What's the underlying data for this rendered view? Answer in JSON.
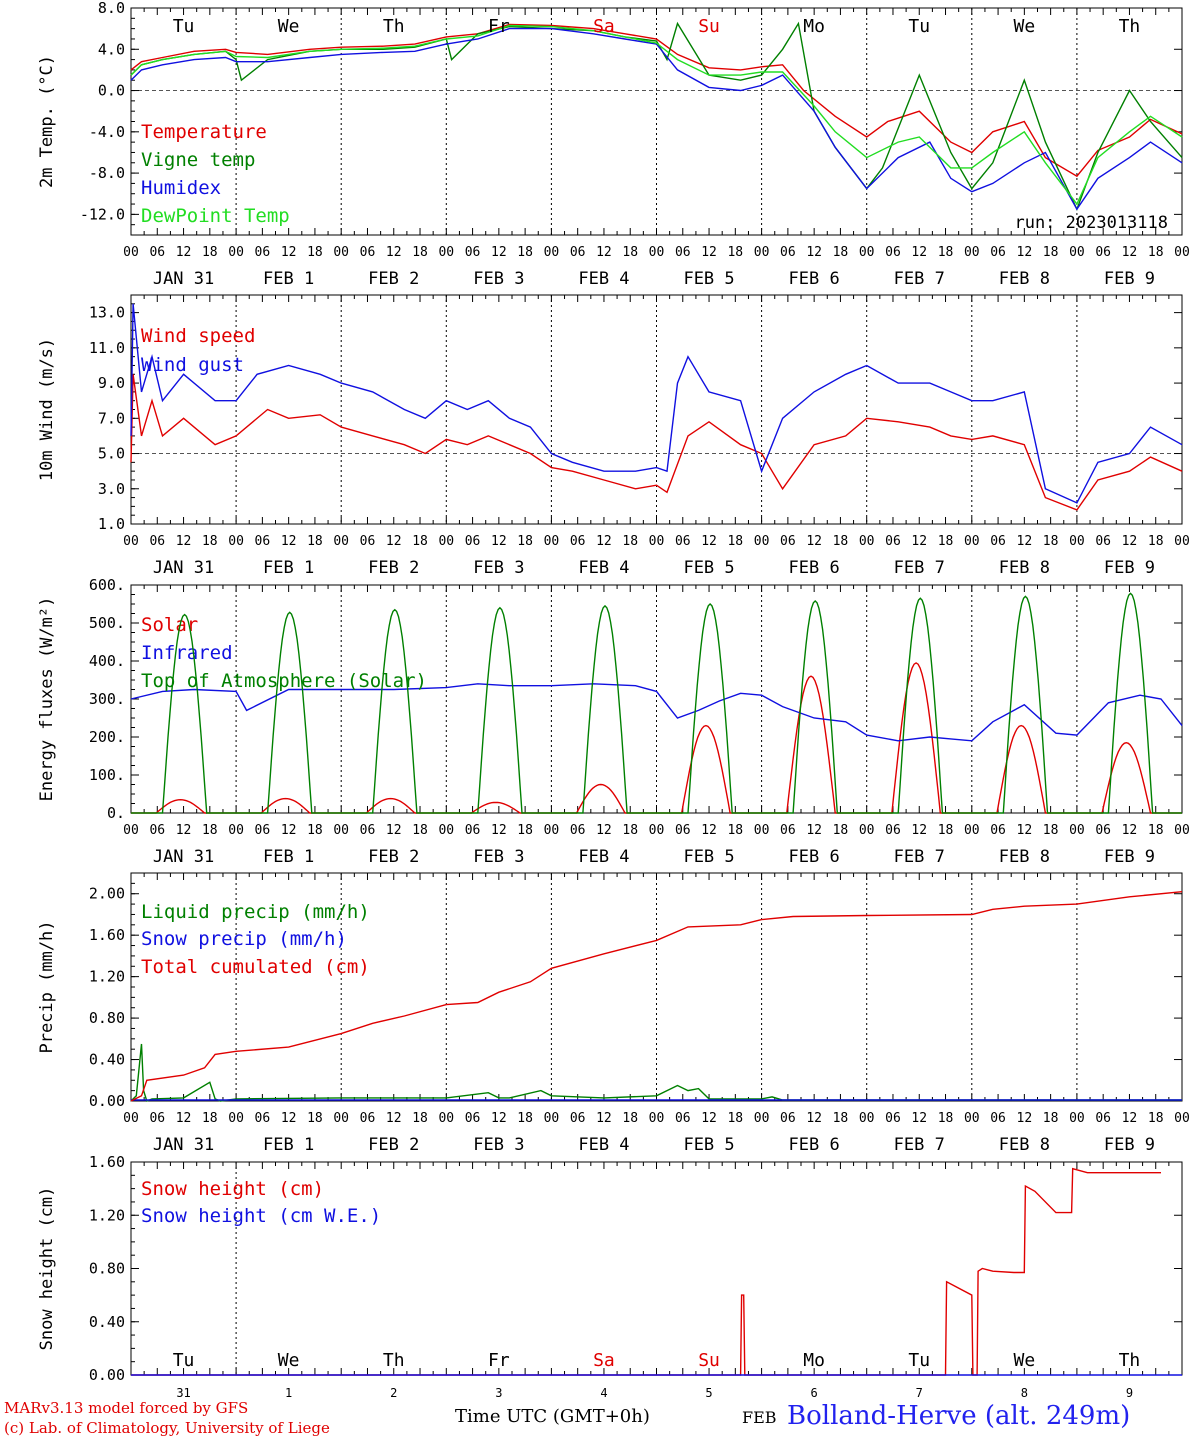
{
  "colors": {
    "red": "#e00000",
    "green": "#008000",
    "blue": "#1010e0",
    "lightgreen": "#22dd22",
    "black": "#000000"
  },
  "day_labels": [
    "Tu",
    "We",
    "Th",
    "Fr",
    "Sa",
    "Su",
    "Mo",
    "Tu",
    "We",
    "Th"
  ],
  "weekend_days": [
    "Sa",
    "Su"
  ],
  "hour_ticks": [
    "00",
    "06",
    "12",
    "18"
  ],
  "date_labels": [
    "JAN 31",
    "FEB  1",
    "FEB  2",
    "FEB  3",
    "FEB  4",
    "FEB  5",
    "FEB  6",
    "FEB  7",
    "FEB  8",
    "FEB  9"
  ],
  "bottom_day_numbers": [
    "31",
    "1",
    "2",
    "3",
    "4",
    "5",
    "6",
    "7",
    "8",
    "9"
  ],
  "footer": {
    "credit_line1": "MARv3.13 model forced by GFS",
    "credit_line2": "(c) Lab. of Climatology, University of Liege",
    "xlabel": "Time UTC (GMT+0h)",
    "month": "FEB",
    "station": "Bolland-Herve (alt. 249m)"
  },
  "chart_data": [
    {
      "type": "line",
      "ylabel": "2m Temp. (°C)",
      "ylim": [
        -14,
        8
      ],
      "yticks": [
        "8.0",
        "4.0",
        "0.0",
        "-4.0",
        "-8.0",
        "-12.0"
      ],
      "ytick_values": [
        8,
        4,
        0,
        -4,
        -8,
        -12
      ],
      "ref_line": 0,
      "annotation": "run: 2023013118",
      "x_unit": "days since JAN 31 00 UTC",
      "series": [
        {
          "name": "Temperature",
          "color": "#e00000",
          "x": [
            0,
            0.1,
            0.3,
            0.6,
            0.9,
            1.0,
            1.3,
            1.7,
            2.0,
            2.4,
            2.7,
            3.0,
            3.3,
            3.6,
            4.0,
            4.4,
            4.7,
            5.0,
            5.2,
            5.5,
            5.8,
            6.0,
            6.2,
            6.4,
            6.7,
            7.0,
            7.2,
            7.5,
            7.8,
            8.0,
            8.2,
            8.5,
            8.7,
            9.0,
            9.2,
            9.5,
            9.7,
            10.0
          ],
          "values": [
            2.0,
            2.8,
            3.2,
            3.8,
            4.0,
            3.7,
            3.5,
            4.0,
            4.2,
            4.3,
            4.5,
            5.2,
            5.5,
            6.4,
            6.3,
            6.0,
            5.5,
            5.0,
            3.5,
            2.2,
            2.0,
            2.3,
            2.5,
            0.0,
            -2.5,
            -4.5,
            -3.0,
            -2.0,
            -5.0,
            -6.0,
            -4.0,
            -3.0,
            -6.5,
            -8.3,
            -5.8,
            -4.5,
            -2.8,
            -4.2
          ]
        },
        {
          "name": "Vigne temp",
          "color": "#008000",
          "x": [
            0,
            0.1,
            0.3,
            0.6,
            0.9,
            1.0,
            1.05,
            1.3,
            1.7,
            2.0,
            2.4,
            2.7,
            3.0,
            3.05,
            3.3,
            3.6,
            4.0,
            4.4,
            4.7,
            5.0,
            5.1,
            5.2,
            5.5,
            5.8,
            6.0,
            6.2,
            6.35,
            6.5,
            6.7,
            7.0,
            7.15,
            7.5,
            7.8,
            8.0,
            8.2,
            8.5,
            8.7,
            9.0,
            9.2,
            9.5,
            9.7,
            10.0
          ],
          "values": [
            1.5,
            2.5,
            3.0,
            3.5,
            3.8,
            3.0,
            1.0,
            3.0,
            3.8,
            4.0,
            4.0,
            4.2,
            5.0,
            3.0,
            5.5,
            6.2,
            6.0,
            5.8,
            5.2,
            4.8,
            3.0,
            6.5,
            1.5,
            1.0,
            1.5,
            4.0,
            6.5,
            -2.0,
            -5.5,
            -9.5,
            -7.5,
            1.5,
            -6.0,
            -9.5,
            -7.0,
            1.0,
            -5.0,
            -11.5,
            -6.0,
            0.0,
            -3.0,
            -6.5
          ]
        },
        {
          "name": "Humidex",
          "color": "#1010e0",
          "x": [
            0,
            0.1,
            0.3,
            0.6,
            0.9,
            1.0,
            1.3,
            1.7,
            2.0,
            2.4,
            2.7,
            3.0,
            3.3,
            3.6,
            4.0,
            4.4,
            4.7,
            5.0,
            5.2,
            5.5,
            5.8,
            6.0,
            6.2,
            6.5,
            6.7,
            7.0,
            7.3,
            7.6,
            7.8,
            8.0,
            8.2,
            8.5,
            8.7,
            9.0,
            9.2,
            9.5,
            9.7,
            10.0
          ],
          "values": [
            1.0,
            2.0,
            2.5,
            3.0,
            3.2,
            2.8,
            2.8,
            3.2,
            3.5,
            3.7,
            3.8,
            4.5,
            5.0,
            6.0,
            6.0,
            5.5,
            5.0,
            4.5,
            2.0,
            0.3,
            0.0,
            0.5,
            1.5,
            -2.0,
            -5.5,
            -9.5,
            -6.5,
            -5.0,
            -8.5,
            -9.8,
            -9.0,
            -7.0,
            -6.0,
            -11.5,
            -8.5,
            -6.5,
            -5.0,
            -7.0
          ]
        },
        {
          "name": "DewPoint Temp",
          "color": "#22dd22",
          "x": [
            0,
            0.1,
            0.3,
            0.6,
            0.9,
            1.0,
            1.3,
            1.7,
            2.0,
            2.4,
            2.7,
            3.0,
            3.3,
            3.6,
            4.0,
            4.4,
            4.7,
            5.0,
            5.2,
            5.5,
            5.8,
            6.0,
            6.2,
            6.5,
            6.7,
            7.0,
            7.3,
            7.5,
            7.8,
            8.0,
            8.2,
            8.5,
            8.7,
            9.0,
            9.2,
            9.5,
            9.7,
            10.0
          ],
          "values": [
            1.5,
            2.5,
            3.0,
            3.5,
            3.8,
            3.3,
            3.2,
            3.8,
            4.0,
            4.1,
            4.3,
            5.0,
            5.3,
            6.3,
            6.2,
            5.8,
            5.2,
            4.6,
            3.0,
            1.5,
            1.5,
            1.8,
            1.8,
            -1.5,
            -4.0,
            -6.5,
            -5.0,
            -4.5,
            -7.5,
            -7.5,
            -6.0,
            -4.0,
            -7.0,
            -11.0,
            -6.5,
            -4.0,
            -2.5,
            -4.5
          ]
        }
      ]
    },
    {
      "type": "line",
      "ylabel": "10m Wind (m/s)",
      "ylim": [
        1,
        14
      ],
      "yticks": [
        "13.0",
        "11.0",
        "9.0",
        "7.0",
        "5.0",
        "3.0",
        "1.0"
      ],
      "ytick_values": [
        13,
        11,
        9,
        7,
        5,
        3,
        1
      ],
      "ref_line": 5,
      "x_unit": "days since JAN 31 00 UTC",
      "series": [
        {
          "name": "Wind speed",
          "color": "#e00000",
          "x": [
            0,
            0.02,
            0.1,
            0.2,
            0.3,
            0.5,
            0.8,
            1.0,
            1.3,
            1.5,
            1.8,
            2.0,
            2.3,
            2.6,
            2.8,
            3.0,
            3.2,
            3.4,
            3.6,
            3.8,
            4.0,
            4.2,
            4.5,
            4.8,
            5.0,
            5.1,
            5.3,
            5.5,
            5.8,
            6.0,
            6.2,
            6.5,
            6.8,
            7.0,
            7.3,
            7.6,
            7.8,
            8.0,
            8.2,
            8.5,
            8.7,
            9.0,
            9.2,
            9.5,
            9.7,
            10.0
          ],
          "values": [
            4.5,
            9.5,
            6.0,
            8.0,
            6.0,
            7.0,
            5.5,
            6.0,
            7.5,
            7.0,
            7.2,
            6.5,
            6.0,
            5.5,
            5.0,
            5.8,
            5.5,
            6.0,
            5.5,
            5.0,
            4.2,
            4.0,
            3.5,
            3.0,
            3.2,
            2.8,
            6.0,
            6.8,
            5.5,
            5.0,
            3.0,
            5.5,
            6.0,
            7.0,
            6.8,
            6.5,
            6.0,
            5.8,
            6.0,
            5.5,
            2.5,
            1.8,
            3.5,
            4.0,
            4.8,
            4.0
          ]
        },
        {
          "name": "Wind gust",
          "color": "#1010e0",
          "x": [
            0,
            0.02,
            0.1,
            0.2,
            0.3,
            0.5,
            0.8,
            1.0,
            1.2,
            1.5,
            1.8,
            2.0,
            2.3,
            2.6,
            2.8,
            3.0,
            3.2,
            3.4,
            3.6,
            3.8,
            4.0,
            4.2,
            4.5,
            4.8,
            5.0,
            5.1,
            5.2,
            5.3,
            5.5,
            5.8,
            6.0,
            6.2,
            6.5,
            6.8,
            7.0,
            7.3,
            7.6,
            7.8,
            8.0,
            8.2,
            8.5,
            8.7,
            9.0,
            9.2,
            9.5,
            9.7,
            10.0
          ],
          "values": [
            6.0,
            13.5,
            8.5,
            10.5,
            8.0,
            9.5,
            8.0,
            8.0,
            9.5,
            10.0,
            9.5,
            9.0,
            8.5,
            7.5,
            7.0,
            8.0,
            7.5,
            8.0,
            7.0,
            6.5,
            5.0,
            4.5,
            4.0,
            4.0,
            4.2,
            4.0,
            9.0,
            10.5,
            8.5,
            8.0,
            4.0,
            7.0,
            8.5,
            9.5,
            10.0,
            9.0,
            9.0,
            8.5,
            8.0,
            8.0,
            8.5,
            3.0,
            2.2,
            4.5,
            5.0,
            6.5,
            5.5
          ]
        }
      ]
    },
    {
      "type": "line",
      "ylabel": "Energy fluxes (W/m²)",
      "ylim": [
        0,
        600
      ],
      "yticks": [
        "600.",
        "500.",
        "400.",
        "300.",
        "200.",
        "100.",
        "0."
      ],
      "ytick_values": [
        600,
        500,
        400,
        300,
        200,
        100,
        0
      ],
      "x_unit": "days since JAN 31 00 UTC",
      "daily_peak_days": [
        0,
        1,
        2,
        3,
        4,
        5,
        6,
        7,
        8,
        9
      ],
      "series": [
        {
          "name": "Solar",
          "color": "#e00000",
          "daily_peaks": [
            35,
            38,
            38,
            28,
            75,
            230,
            360,
            395,
            230,
            185
          ]
        },
        {
          "name": "Infrared",
          "color": "#1010e0",
          "x": [
            0,
            0.3,
            0.6,
            1.0,
            1.1,
            1.5,
            2.0,
            2.5,
            3.0,
            3.3,
            3.6,
            4.0,
            4.4,
            4.8,
            5.0,
            5.2,
            5.4,
            5.6,
            5.8,
            6.0,
            6.2,
            6.5,
            6.8,
            7.0,
            7.3,
            7.6,
            7.8,
            8.0,
            8.2,
            8.5,
            8.8,
            9.0,
            9.3,
            9.6,
            9.8,
            10.0
          ],
          "values": [
            300,
            320,
            325,
            320,
            270,
            325,
            325,
            325,
            330,
            340,
            335,
            335,
            340,
            335,
            320,
            250,
            270,
            295,
            315,
            310,
            280,
            250,
            240,
            205,
            190,
            200,
            195,
            190,
            240,
            285,
            210,
            205,
            290,
            310,
            300,
            230
          ]
        },
        {
          "name": "Top of Atmosphere (Solar)",
          "color": "#008000",
          "daily_peaks": [
            522,
            528,
            535,
            540,
            545,
            550,
            558,
            565,
            570,
            578
          ]
        }
      ]
    },
    {
      "type": "line",
      "ylabel": "Precip (mm/h)",
      "ylim": [
        0,
        2.2
      ],
      "yticks": [
        "2.00",
        "1.60",
        "1.20",
        "0.80",
        "0.40",
        "0.00"
      ],
      "ytick_values": [
        2.0,
        1.6,
        1.2,
        0.8,
        0.4,
        0.0
      ],
      "x_unit": "days since JAN 31 00 UTC",
      "series": [
        {
          "name": "Liquid precip (mm/h)",
          "color": "#008000",
          "x": [
            0,
            0.05,
            0.1,
            0.12,
            0.15,
            0.2,
            0.5,
            0.75,
            0.8,
            0.85,
            1.0,
            2.0,
            3.0,
            3.4,
            3.5,
            3.6,
            3.9,
            4.0,
            4.5,
            5.0,
            5.2,
            5.3,
            5.4,
            5.5,
            6.0,
            6.1,
            6.2,
            10.0
          ],
          "values": [
            0.0,
            0.05,
            0.55,
            0.1,
            0.0,
            0.02,
            0.03,
            0.18,
            0.02,
            0.0,
            0.02,
            0.03,
            0.03,
            0.08,
            0.03,
            0.03,
            0.1,
            0.05,
            0.03,
            0.05,
            0.15,
            0.1,
            0.12,
            0.02,
            0.02,
            0.04,
            0.01,
            0.01
          ]
        },
        {
          "name": "Snow precip (mm/h)",
          "color": "#1010e0",
          "x": [
            0,
            10
          ],
          "values": [
            0.01,
            0.01
          ]
        },
        {
          "name": "Total cumulated (cm)",
          "color": "#e00000",
          "x": [
            0,
            0.1,
            0.15,
            0.5,
            0.7,
            0.8,
            1.0,
            1.5,
            2.0,
            2.3,
            2.6,
            3.0,
            3.3,
            3.5,
            3.8,
            4.0,
            4.5,
            5.0,
            5.3,
            5.8,
            6.0,
            6.3,
            7.0,
            8.0,
            8.2,
            8.5,
            9.0,
            9.5,
            10.0
          ],
          "values": [
            0.0,
            0.05,
            0.2,
            0.25,
            0.32,
            0.45,
            0.48,
            0.52,
            0.65,
            0.75,
            0.82,
            0.93,
            0.95,
            1.05,
            1.15,
            1.28,
            1.42,
            1.55,
            1.68,
            1.7,
            1.75,
            1.78,
            1.79,
            1.8,
            1.85,
            1.88,
            1.9,
            1.97,
            2.02
          ]
        }
      ]
    },
    {
      "type": "line",
      "ylabel": "Snow height (cm)",
      "ylim": [
        0,
        1.6
      ],
      "yticks": [
        "1.60",
        "1.20",
        "0.80",
        "0.40",
        "0.00"
      ],
      "ytick_values": [
        1.6,
        1.2,
        0.8,
        0.4,
        0.0
      ],
      "x_unit": "days since JAN 31 00 UTC",
      "series": [
        {
          "name": "Snow height (cm)",
          "color": "#e00000",
          "x": [
            0,
            5.8,
            5.81,
            5.83,
            5.84,
            7.75,
            7.76,
            8.0,
            8.01,
            8.05,
            8.06,
            8.1,
            8.2,
            8.4,
            8.5,
            8.51,
            8.6,
            8.8,
            8.95,
            8.96,
            9.1,
            9.2,
            9.3,
            9.31,
            9.5,
            9.8
          ],
          "values": [
            0,
            0,
            0.6,
            0.6,
            0,
            0,
            0.7,
            0.6,
            0,
            0,
            0.78,
            0.8,
            0.78,
            0.77,
            0.77,
            1.42,
            1.38,
            1.22,
            1.22,
            1.55,
            1.52,
            1.52,
            1.52,
            1.52,
            1.52,
            1.52
          ]
        },
        {
          "name": "Snow height (cm W.E.)",
          "color": "#1010e0",
          "x": [
            0,
            10
          ],
          "values": [
            0,
            0
          ]
        }
      ]
    }
  ]
}
